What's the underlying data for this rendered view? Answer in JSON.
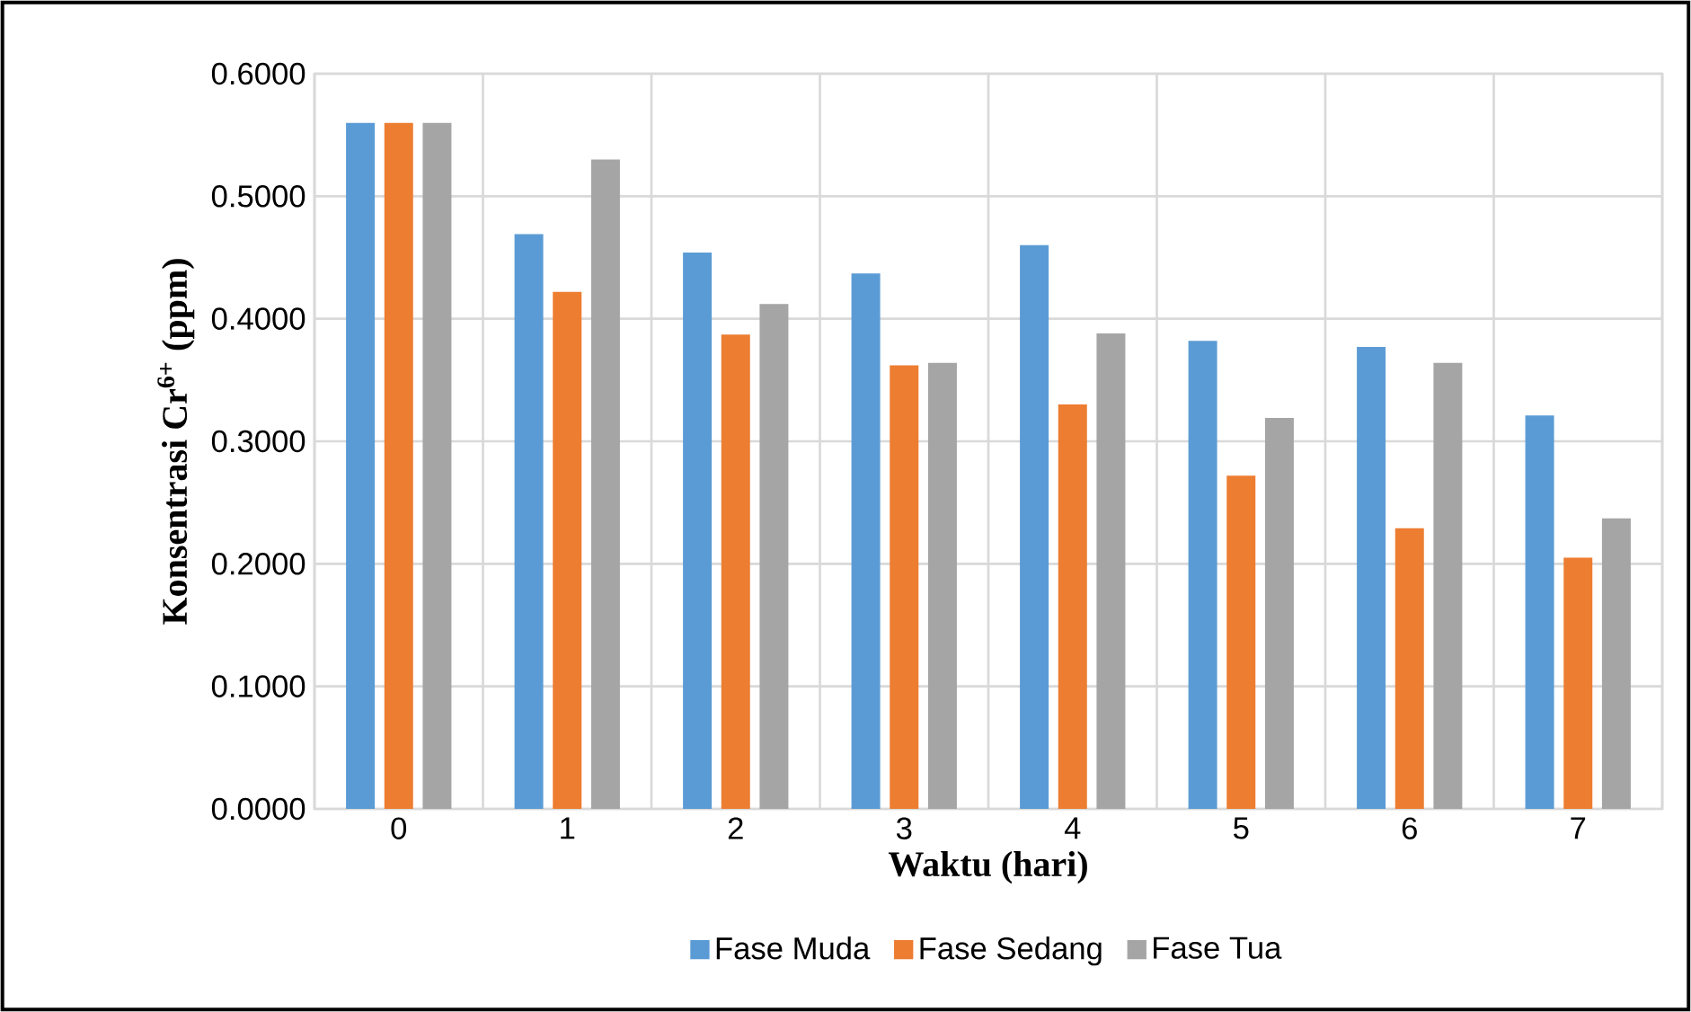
{
  "chart_data": {
    "type": "bar",
    "xlabel": "Waktu (hari)",
    "ylabel": "Konsentrasi Cr$^{6+}$ (ppm)",
    "categories": [
      "0",
      "1",
      "2",
      "3",
      "4",
      "5",
      "6",
      "7"
    ],
    "series": [
      {
        "name": "Fase Muda",
        "color": "#5b9bd5",
        "values": [
          0.56,
          0.469,
          0.454,
          0.437,
          0.46,
          0.382,
          0.377,
          0.321
        ]
      },
      {
        "name": "Fase Sedang",
        "color": "#ed7d31",
        "values": [
          0.56,
          0.422,
          0.387,
          0.362,
          0.33,
          0.272,
          0.229,
          0.205
        ]
      },
      {
        "name": "Fase Tua",
        "color": "#a5a5a5",
        "values": [
          0.56,
          0.53,
          0.412,
          0.364,
          0.388,
          0.319,
          0.364,
          0.237
        ]
      }
    ],
    "ylim": [
      0,
      0.6
    ],
    "yticks": [
      {
        "value": 0,
        "label": "0.0000"
      },
      {
        "value": 0.1,
        "label": "0.1000"
      },
      {
        "value": 0.2,
        "label": "0.2000"
      },
      {
        "value": 0.3,
        "label": "0.3000"
      },
      {
        "value": 0.4,
        "label": "0.4000"
      },
      {
        "value": 0.5,
        "label": "0.5000"
      },
      {
        "value": 0.6,
        "label": "0.6000"
      }
    ],
    "grid": true,
    "legend": "bottom"
  }
}
